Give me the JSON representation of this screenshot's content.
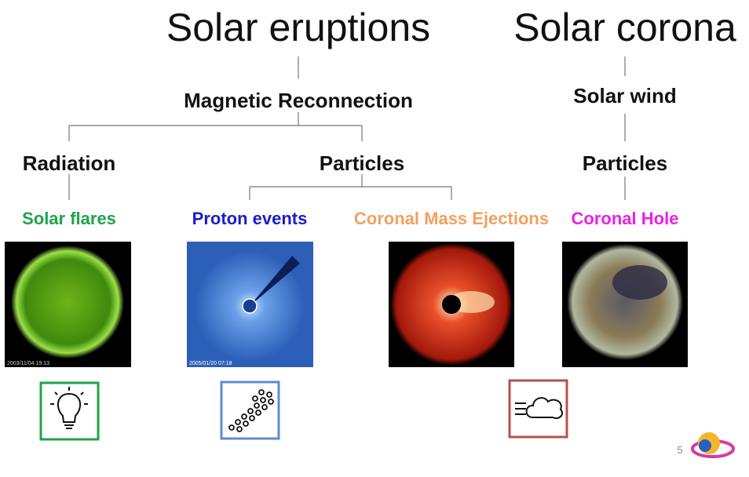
{
  "titles": [
    "Solar eruptions",
    "Solar corona"
  ],
  "nodes": [
    "Magnetic Reconnection",
    "Solar wind",
    "Radiation",
    "Particles",
    "Particles"
  ],
  "phenomena": [
    "Solar flares",
    "Proton events",
    "Coronal Mass Ejections",
    "Coronal Hole"
  ],
  "image_stamps": [
    "2003/11/04 19:13",
    "2005/01/20 07:18"
  ],
  "page_number": "5"
}
